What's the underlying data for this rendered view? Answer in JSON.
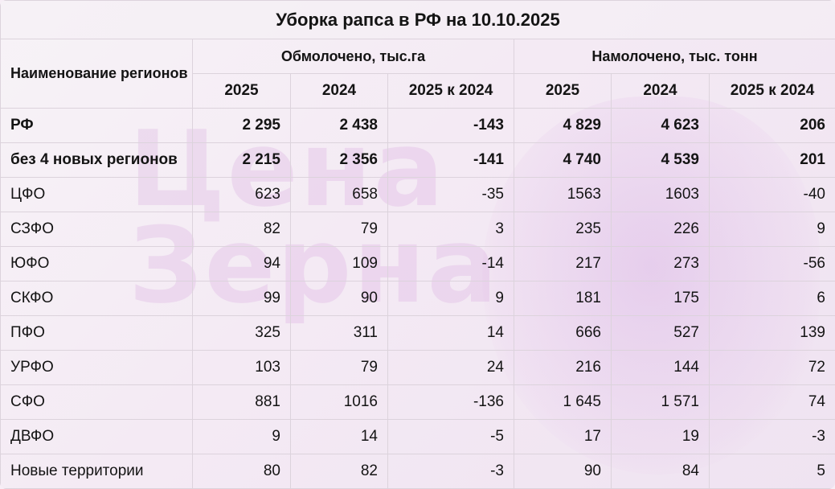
{
  "title": "Уборка рапса в РФ на 10.10.2025",
  "watermark": [
    "Цена",
    "Зерна"
  ],
  "header": {
    "name_col": "Наименование регионов",
    "group1": "Обмолочено, тыс.га",
    "group2": "Намолочено, тыс. тонн",
    "sub": [
      "2025",
      "2024",
      "2025 к 2024",
      "2025",
      "2024",
      "2025 к 2024"
    ]
  },
  "rows": [
    {
      "name": "РФ",
      "bold": true,
      "values": [
        "2 295",
        "2 438",
        "-143",
        "4 829",
        "4 623",
        "206"
      ]
    },
    {
      "name": "без 4 новых регионов",
      "bold": true,
      "values": [
        "2 215",
        "2 356",
        "-141",
        "4 740",
        "4 539",
        "201"
      ]
    },
    {
      "name": "ЦФО",
      "bold": false,
      "values": [
        "623",
        "658",
        "-35",
        "1563",
        "1603",
        "-40"
      ]
    },
    {
      "name": "СЗФО",
      "bold": false,
      "values": [
        "82",
        "79",
        "3",
        "235",
        "226",
        "9"
      ]
    },
    {
      "name": "ЮФО",
      "bold": false,
      "values": [
        "94",
        "109",
        "-14",
        "217",
        "273",
        "-56"
      ]
    },
    {
      "name": "СКФО",
      "bold": false,
      "values": [
        "99",
        "90",
        "9",
        "181",
        "175",
        "6"
      ]
    },
    {
      "name": "ПФО",
      "bold": false,
      "values": [
        "325",
        "311",
        "14",
        "666",
        "527",
        "139"
      ]
    },
    {
      "name": "УРФО",
      "bold": false,
      "values": [
        "103",
        "79",
        "24",
        "216",
        "144",
        "72"
      ]
    },
    {
      "name": "СФО",
      "bold": false,
      "values": [
        "881",
        "1016",
        "-136",
        "1 645",
        "1 571",
        "74"
      ]
    },
    {
      "name": "ДВФО",
      "bold": false,
      "values": [
        "9",
        "14",
        "-5",
        "17",
        "19",
        "-3"
      ]
    },
    {
      "name": "Новые территории",
      "bold": false,
      "values": [
        "80",
        "82",
        "-3",
        "90",
        "84",
        "5"
      ]
    }
  ]
}
